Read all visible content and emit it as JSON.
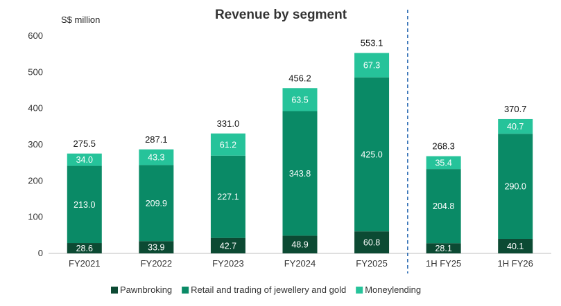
{
  "chart_data": {
    "type": "bar",
    "stacked": true,
    "title": "Revenue by segment",
    "unit_label": "S$ million",
    "ylim": [
      0,
      600
    ],
    "yticks": [
      0,
      100,
      200,
      300,
      400,
      500,
      600
    ],
    "categories": [
      "FY2021",
      "FY2022",
      "FY2023",
      "FY2024",
      "FY2025",
      "1H FY25",
      "1H FY26"
    ],
    "series": [
      {
        "name": "Pawnbroking",
        "color": "#0c4a33",
        "label_color": "#ffffff",
        "values": [
          28.6,
          33.9,
          42.7,
          48.9,
          60.8,
          28.1,
          40.1
        ],
        "labels": [
          "28.6",
          "33.9",
          "42.7",
          "48.9",
          "60.8",
          "28.1",
          "40.1"
        ]
      },
      {
        "name": "Retail and trading of jewellery and gold",
        "color": "#0a8a66",
        "label_color": "#ffffff",
        "values": [
          213.0,
          209.9,
          227.1,
          343.8,
          425.0,
          204.8,
          290.0
        ],
        "labels": [
          "213.0",
          "209.9",
          "227.1",
          "343.8",
          "425.0",
          "204.8",
          "290.0"
        ]
      },
      {
        "name": "Moneylending",
        "color": "#26c39a",
        "label_color": "#ffffff",
        "values": [
          34.0,
          43.3,
          61.2,
          63.5,
          67.3,
          35.4,
          40.7
        ],
        "labels": [
          "34.0",
          "43.3",
          "61.2",
          "63.5",
          "67.3",
          "35.4",
          "40.7"
        ]
      }
    ],
    "totals": [
      "275.5",
      "287.1",
      "331.0",
      "456.2",
      "553.1",
      "268.3",
      "370.7"
    ],
    "divider_after_index": 4,
    "divider_color": "#2e6db4",
    "legend_position": "bottom",
    "grid": false
  }
}
